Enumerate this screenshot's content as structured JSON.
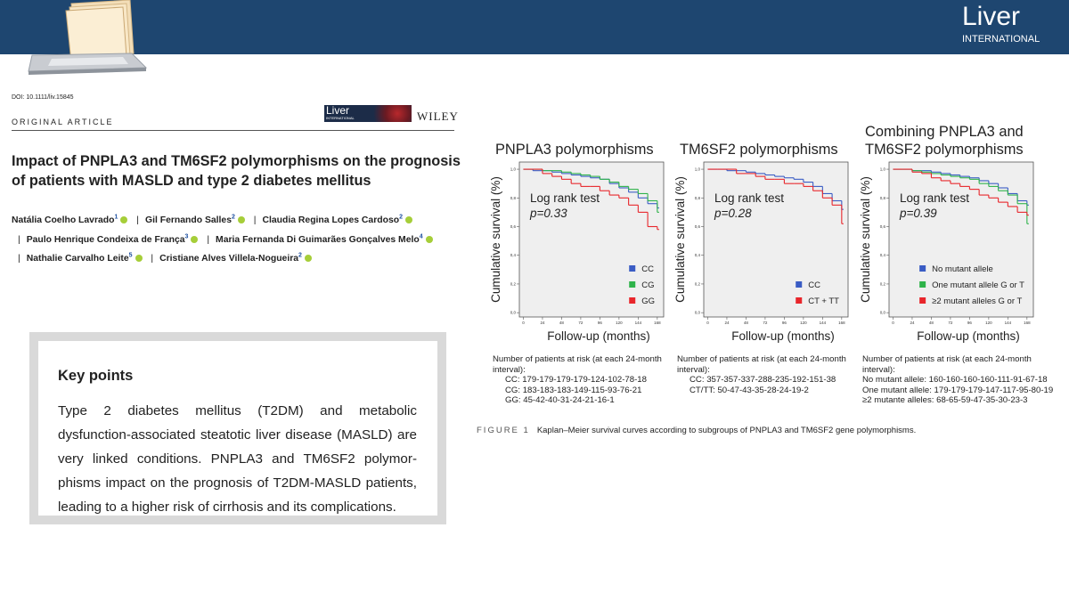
{
  "header": {
    "logo_title": "Liver",
    "logo_subtitle": "INTERNATIONAL"
  },
  "article": {
    "doi": "DOI: 10.1111/liv.15845",
    "section": "ORIGINAL ARTICLE",
    "journal_mark": "Liver",
    "journal_mark_sub": "INTERNATIONAL",
    "publisher": "WILEY",
    "title": "Impact of PNPLA3 and TM6SF2 polymorphisms on the prognosis of patients with MASLD and type 2 diabetes mellitus",
    "author_separator": "|",
    "authors": [
      {
        "name": "Natália Coelho Lavrado",
        "affiliation": "1"
      },
      {
        "name": "Gil Fernando Salles",
        "affiliation": "2"
      },
      {
        "name": "Claudia Regina Lopes Cardoso",
        "affiliation": "2"
      },
      {
        "name": "Paulo Henrique Condeixa de França",
        "affiliation": "3"
      },
      {
        "name": "Maria Fernanda Di Guimarães Gonçalves Melo",
        "affiliation": "4"
      },
      {
        "name": "Nathalie Carvalho Leite",
        "affiliation": "5"
      },
      {
        "name": "Cristiane Alves Villela-Nogueira",
        "affiliation": "2"
      }
    ]
  },
  "key_points": {
    "title": "Key points",
    "text": "Type 2 diabetes mellitus (T2DM) and metabolic dysfunction-associated steatotic liver disease (MASLD) are very linked conditions. PNPLA3 and TM6SF2 polymor­phisms impact on the prognosis of T2DM-MASLD patients, leading to a higher risk of cirrhosis and its complications."
  },
  "figure": {
    "label": "FIGURE 1",
    "caption": "Kaplan–Meier survival curves according to subgroups of PNPLA3 and TM6SF2 gene polymorphisms."
  },
  "chart_data": [
    {
      "type": "line",
      "title": "PNPLA3 polymorphisms",
      "annotation": [
        "Log rank test",
        "p=0.33"
      ],
      "x_label": "Follow-up (months)",
      "y_label": "Cumulative survival (%)",
      "x": [
        0,
        12,
        24,
        36,
        48,
        60,
        72,
        84,
        96,
        108,
        120,
        132,
        144,
        156,
        168
      ],
      "xlim": [
        -5,
        176
      ],
      "xticks": [
        0,
        24,
        48,
        72,
        96,
        120,
        144,
        168
      ],
      "ylim": [
        -0.03,
        1.05
      ],
      "yticks": [
        {
          "value": 0,
          "label": "0,0"
        },
        {
          "value": 0.2,
          "label": "0,2"
        },
        {
          "value": 0.4,
          "label": "0,4"
        },
        {
          "value": 0.6,
          "label": "0,6"
        },
        {
          "value": 0.8,
          "label": "0,8"
        },
        {
          "value": 1,
          "label": "1,0"
        }
      ],
      "legend": "lower right",
      "series": [
        {
          "name": "CC",
          "color": "#3a5cc4",
          "values": [
            1,
            0.99,
            0.99,
            0.98,
            0.97,
            0.96,
            0.95,
            0.94,
            0.93,
            0.9,
            0.87,
            0.84,
            0.8,
            0.76,
            0.73
          ]
        },
        {
          "name": "CG",
          "color": "#2fb34a",
          "values": [
            1,
            1,
            0.99,
            0.99,
            0.98,
            0.97,
            0.96,
            0.95,
            0.93,
            0.91,
            0.88,
            0.86,
            0.83,
            0.78,
            0.7
          ]
        },
        {
          "name": "GG",
          "color": "#e8262b",
          "values": [
            1,
            1,
            0.97,
            0.95,
            0.93,
            0.9,
            0.88,
            0.88,
            0.85,
            0.82,
            0.8,
            0.75,
            0.7,
            0.6,
            0.58
          ]
        }
      ],
      "risk_table": {
        "heading": "Number of patients at risk (at each 24-month interval):",
        "rows": [
          "CC: 179-179-179-179-124-102-78-18",
          "CG: 183-183-183-149-115-93-76-21",
          "GG: 45-42-40-31-24-21-16-1"
        ]
      }
    },
    {
      "type": "line",
      "title": "TM6SF2 polymorphisms",
      "annotation": [
        "Log rank test",
        "p=0.28"
      ],
      "x_label": "Follow-up (months)",
      "y_label": "Cumulative survival (%)",
      "x": [
        0,
        12,
        24,
        36,
        48,
        60,
        72,
        84,
        96,
        108,
        120,
        132,
        144,
        156,
        168
      ],
      "xlim": [
        -5,
        176
      ],
      "xticks": [
        0,
        24,
        48,
        72,
        96,
        120,
        144,
        168
      ],
      "ylim": [
        -0.03,
        1.05
      ],
      "yticks": [
        {
          "value": 0,
          "label": "0,0"
        },
        {
          "value": 0.2,
          "label": "0,2"
        },
        {
          "value": 0.4,
          "label": "0,4"
        },
        {
          "value": 0.6,
          "label": "0,6"
        },
        {
          "value": 0.8,
          "label": "0,8"
        },
        {
          "value": 1,
          "label": "1,0"
        }
      ],
      "legend": "lower right",
      "series": [
        {
          "name": "CC",
          "color": "#3a5cc4",
          "values": [
            1,
            1,
            0.99,
            0.99,
            0.98,
            0.97,
            0.96,
            0.95,
            0.94,
            0.93,
            0.91,
            0.88,
            0.83,
            0.78,
            0.72
          ]
        },
        {
          "name": "CT + TT",
          "color": "#e8262b",
          "values": [
            1,
            1,
            1,
            0.97,
            0.97,
            0.95,
            0.93,
            0.93,
            0.9,
            0.9,
            0.88,
            0.85,
            0.8,
            0.75,
            0.62
          ]
        }
      ],
      "risk_table": {
        "heading": "Number of patients at risk (at each 24-month interval):",
        "rows": [
          "CC: 357-357-337-288-235-192-151-38",
          "CT/TT: 50-47-43-35-28-24-19-2"
        ]
      }
    },
    {
      "type": "line",
      "title": "Combining PNPLA3 and TM6SF2 polymorphisms",
      "annotation": [
        "Log rank test",
        "p=0.39"
      ],
      "x_label": "Follow-up (months)",
      "y_label": "Cumulative survival (%)",
      "x": [
        0,
        12,
        24,
        36,
        48,
        60,
        72,
        84,
        96,
        108,
        120,
        132,
        144,
        156,
        168
      ],
      "xlim": [
        -5,
        176
      ],
      "xticks": [
        0,
        24,
        48,
        72,
        96,
        120,
        144,
        168
      ],
      "ylim": [
        -0.03,
        1.05
      ],
      "yticks": [
        {
          "value": 0,
          "label": "0,0"
        },
        {
          "value": 0.2,
          "label": "0,2"
        },
        {
          "value": 0.4,
          "label": "0,4"
        },
        {
          "value": 0.6,
          "label": "0,6"
        },
        {
          "value": 0.8,
          "label": "0,8"
        },
        {
          "value": 1,
          "label": "1,0"
        }
      ],
      "legend": "lower right",
      "series": [
        {
          "name": "No mutant allele",
          "color": "#3a5cc4",
          "values": [
            1,
            1,
            0.99,
            0.99,
            0.98,
            0.97,
            0.96,
            0.95,
            0.94,
            0.92,
            0.9,
            0.87,
            0.83,
            0.78,
            0.75
          ]
        },
        {
          "name": "One mutant allele G or T",
          "color": "#2fb34a",
          "values": [
            1,
            1,
            0.99,
            0.98,
            0.97,
            0.96,
            0.95,
            0.94,
            0.93,
            0.9,
            0.88,
            0.85,
            0.82,
            0.76,
            0.62
          ]
        },
        {
          "name": "≥2 mutant alleles G or T",
          "color": "#e8262b",
          "values": [
            1,
            1,
            0.98,
            0.97,
            0.94,
            0.92,
            0.9,
            0.88,
            0.86,
            0.82,
            0.8,
            0.77,
            0.74,
            0.7,
            0.68
          ]
        }
      ],
      "risk_table": {
        "heading": "Number of patients at risk (at each 24-month interval):",
        "rows": [
          "No mutant allele: 160-160-160-160-111-91-67-18",
          "One mutant allele: 179-179-179-147-117-95-80-19",
          "≥2 mutante alleles: 68-65-59-47-35-30-23-3"
        ]
      }
    }
  ]
}
